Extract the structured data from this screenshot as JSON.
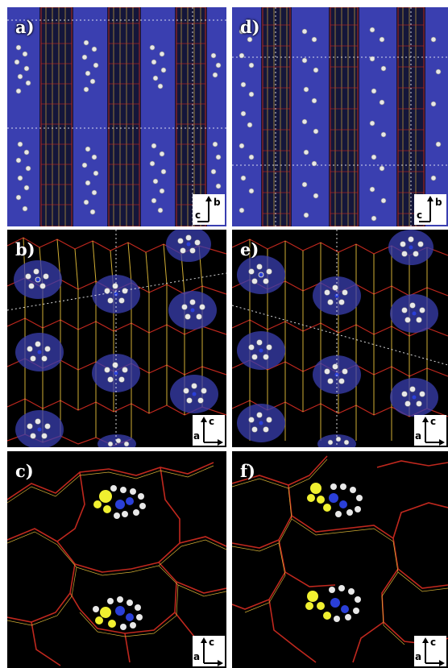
{
  "panels": [
    {
      "id": "a",
      "label": "a)",
      "axis_h": "b",
      "axis_v": "c",
      "style": "side"
    },
    {
      "id": "d",
      "label": "d)",
      "axis_h": "b",
      "axis_v": "c",
      "style": "side"
    },
    {
      "id": "b",
      "label": "b)",
      "axis_h": "a",
      "axis_v": "c",
      "style": "top"
    },
    {
      "id": "e",
      "label": "e)",
      "axis_h": "a",
      "axis_v": "c",
      "style": "top"
    },
    {
      "id": "c",
      "label": "c)",
      "axis_h": "a",
      "axis_v": "c",
      "style": "zoom"
    },
    {
      "id": "f",
      "label": "f)",
      "axis_h": "a",
      "axis_v": "c",
      "style": "zoom"
    }
  ],
  "colors": {
    "background": "#000000",
    "framework_red": "#c0281e",
    "framework_yellow": "#e8c13a",
    "pore_blue": "#3a3fb0",
    "molecule_white": "#e8e8e8",
    "highlight_yellow": "#f0f030",
    "nitrogen_blue": "#2a3fd8"
  }
}
